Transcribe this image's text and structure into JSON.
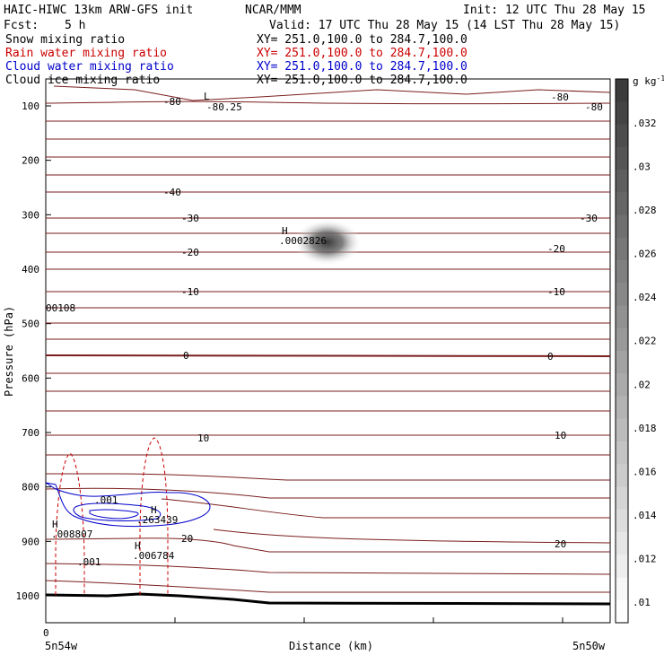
{
  "header": {
    "model": "HAIC-HIWC 13km ARW-GFS init",
    "org": "NCAR/MMM",
    "init": "Init: 12 UTC Thu 28 May 15",
    "fcst_label": "Fcst:",
    "fcst_value": "5 h",
    "valid": "Valid: 17 UTC Thu 28 May 15 (14 LST Thu 28 May 15)"
  },
  "fields": [
    {
      "name": "Snow mixing ratio",
      "xy": "XY= 251.0,100.0 to 284.7,100.0",
      "color": "#000000"
    },
    {
      "name": "Rain water mixing ratio",
      "xy": "XY= 251.0,100.0 to 284.7,100.0",
      "color": "#cc0000"
    },
    {
      "name": "Cloud water mixing ratio",
      "xy": "XY= 251.0,100.0 to 284.7,100.0",
      "color": "#0000cc"
    },
    {
      "name": "Cloud ice mixing ratio",
      "xy": "XY= 251.0,100.0 to 284.7,100.0",
      "color": "#000000"
    }
  ],
  "chart_data": {
    "type": "contour",
    "ylabel": "Pressure (hPa)",
    "xlabel": "Distance (km)",
    "x_left_label": "5n54w",
    "x_right_label": "5n50w",
    "x_zero_label": "0",
    "yticks": [
      100,
      200,
      300,
      400,
      500,
      600,
      700,
      800,
      900,
      1000
    ],
    "ylim": [
      1050,
      50
    ],
    "colorbar": {
      "unit": "g kg",
      "unit_exp": "-1",
      "ticks": [
        ".01",
        ".012",
        ".014",
        ".016",
        ".018",
        ".02",
        ".022",
        ".024",
        ".026",
        ".028",
        ".03",
        ".032"
      ]
    },
    "temperature_labels": {
      "left": [
        "-80",
        "-40",
        "-30",
        "-20",
        "-10",
        "0",
        "10",
        "20"
      ],
      "right": [
        "-80",
        "-80",
        "-30",
        "-20",
        "-10",
        "0",
        "10",
        "20"
      ]
    },
    "annotations": {
      "low_marker": "L",
      "low_value": "-80.25",
      "snow_high_marker": "H",
      "snow_high_value": ".0002826",
      "left_value": "00108",
      "cloud_high_marker": "H",
      "cloud_high_value": ".263439",
      "cloud_contour": ".001",
      "rain_high1_marker": "H",
      "rain_high1_value": ".008807",
      "rain_high2_marker": "H",
      "rain_high2_value": ".006784",
      "rain_contour": ".001"
    }
  }
}
